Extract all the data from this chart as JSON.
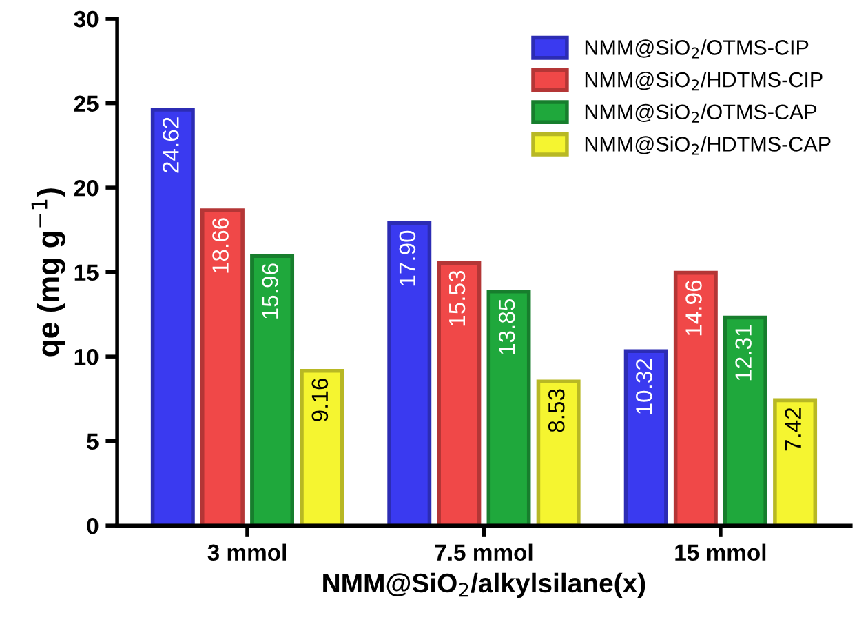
{
  "chart_data": {
    "type": "bar",
    "xlabel": "NMM@SiO$_{2}$/alkylsilane(x)",
    "ylabel": "qe (mg g$^{−1}$)",
    "categories": [
      "3 mmol",
      "7.5 mmol",
      "15 mmol"
    ],
    "series": [
      {
        "name": "NMM@SiO$_{2}$/OTMS-CIP",
        "color": "#3a3af0",
        "values": [
          24.62,
          17.9,
          10.32
        ],
        "value_labels": [
          "24.62",
          "17.90",
          "10.32"
        ]
      },
      {
        "name": "NMM@SiO$_{2}$/HDTMS-CIP",
        "color": "#f04848",
        "values": [
          18.66,
          15.53,
          14.96
        ],
        "value_labels": [
          "18.66",
          "15.53",
          "14.96"
        ]
      },
      {
        "name": "NMM@SiO$_{2}$/OTMS-CAP",
        "color": "#1fa83c",
        "values": [
          15.96,
          13.85,
          12.31
        ],
        "value_labels": [
          "15.96",
          "13.85",
          "12.31"
        ]
      },
      {
        "name": "NMM@SiO$_{2}$/HDTMS-CAP",
        "color": "#f5f530",
        "values": [
          9.16,
          8.53,
          7.42
        ],
        "value_labels": [
          "9.16",
          "8.53",
          "7.42"
        ]
      }
    ],
    "ylim": [
      0,
      30
    ],
    "yticks": [
      0,
      5,
      10,
      15,
      20,
      25,
      30
    ],
    "legend": "top right",
    "grid": false
  }
}
